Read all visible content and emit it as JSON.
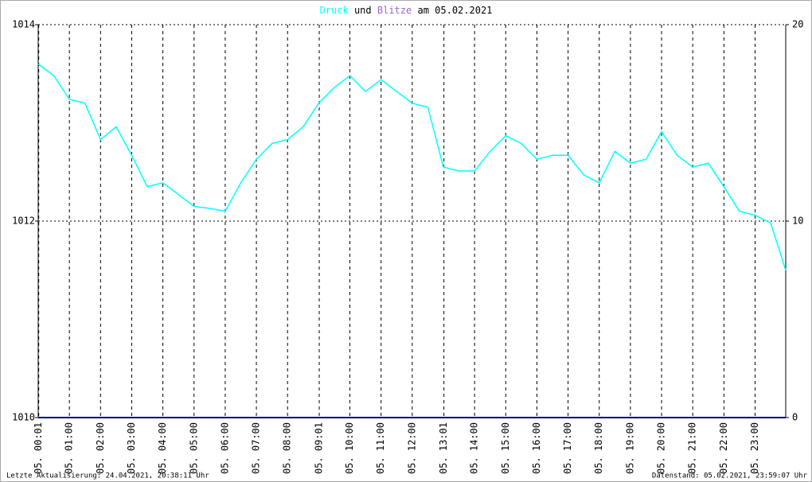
{
  "chart_data": {
    "type": "line",
    "title_date": "am 05.02.2021",
    "title_connector": "und",
    "footer_left": "Letzte Aktualisierung: 24.04.2021, 20:38:11 Uhr",
    "footer_right": "Datenstand: 05.02.2021, 23:59:07 Uhr",
    "x": [
      0,
      30,
      60,
      90,
      120,
      150,
      180,
      210,
      240,
      270,
      300,
      330,
      360,
      390,
      420,
      450,
      480,
      510,
      540,
      570,
      600,
      630,
      660,
      690,
      720,
      750,
      780,
      810,
      840,
      870,
      900,
      930,
      960,
      990,
      1020,
      1050,
      1080,
      1110,
      1140,
      1170,
      1200,
      1230,
      1260,
      1290,
      1320,
      1350,
      1380,
      1410,
      1439
    ],
    "xlim": [
      0,
      1439
    ],
    "xticks": [
      {
        "value": 1,
        "label": "05. 00:01"
      },
      {
        "value": 60,
        "label": "05. 01:00"
      },
      {
        "value": 120,
        "label": "05. 02:00"
      },
      {
        "value": 180,
        "label": "05. 03:00"
      },
      {
        "value": 240,
        "label": "05. 04:00"
      },
      {
        "value": 300,
        "label": "05. 05:00"
      },
      {
        "value": 360,
        "label": "05. 06:00"
      },
      {
        "value": 420,
        "label": "05. 07:00"
      },
      {
        "value": 480,
        "label": "05. 08:00"
      },
      {
        "value": 541,
        "label": "05. 09:01"
      },
      {
        "value": 600,
        "label": "05. 10:00"
      },
      {
        "value": 660,
        "label": "05. 11:00"
      },
      {
        "value": 720,
        "label": "05. 12:00"
      },
      {
        "value": 781,
        "label": "05. 13:01"
      },
      {
        "value": 840,
        "label": "05. 14:00"
      },
      {
        "value": 900,
        "label": "05. 15:00"
      },
      {
        "value": 960,
        "label": "05. 16:00"
      },
      {
        "value": 1020,
        "label": "05. 17:00"
      },
      {
        "value": 1080,
        "label": "05. 18:00"
      },
      {
        "value": 1140,
        "label": "05. 19:00"
      },
      {
        "value": 1200,
        "label": "05. 20:00"
      },
      {
        "value": 1260,
        "label": "05. 21:00"
      },
      {
        "value": 1320,
        "label": "05. 22:00"
      },
      {
        "value": 1380,
        "label": "05. 23:00"
      }
    ],
    "ylim": [
      1010,
      1014
    ],
    "yticks": [
      1010,
      1012,
      1014
    ],
    "y2lim": [
      0,
      20
    ],
    "y2ticks": [
      0,
      10,
      20
    ],
    "grid": true,
    "series": [
      {
        "name": "Druck",
        "color": "#00ffff",
        "values": [
          1013.6,
          1013.48,
          1013.24,
          1013.2,
          1012.83,
          1012.96,
          1012.67,
          1012.35,
          1012.39,
          1012.27,
          1012.15,
          1012.13,
          1012.1,
          1012.39,
          1012.63,
          1012.79,
          1012.83,
          1012.96,
          1013.2,
          1013.36,
          1013.48,
          1013.32,
          1013.44,
          1013.32,
          1013.2,
          1013.16,
          1012.55,
          1012.51,
          1012.51,
          1012.71,
          1012.87,
          1012.79,
          1012.63,
          1012.67,
          1012.67,
          1012.47,
          1012.39,
          1012.71,
          1012.59,
          1012.63,
          1012.91,
          1012.67,
          1012.55,
          1012.59,
          1012.35,
          1012.1,
          1012.06,
          1011.98,
          1011.5
        ]
      },
      {
        "name": "Blitze",
        "color": "#9966cc",
        "line_color": "#000080",
        "axis": "y2",
        "values": [
          0,
          0,
          0,
          0,
          0,
          0,
          0,
          0,
          0,
          0,
          0,
          0,
          0,
          0,
          0,
          0,
          0,
          0,
          0,
          0,
          0,
          0,
          0,
          0,
          0,
          0,
          0,
          0,
          0,
          0,
          0,
          0,
          0,
          0,
          0,
          0,
          0,
          0,
          0,
          0,
          0,
          0,
          0,
          0,
          0,
          0,
          0,
          0,
          0
        ]
      }
    ]
  }
}
